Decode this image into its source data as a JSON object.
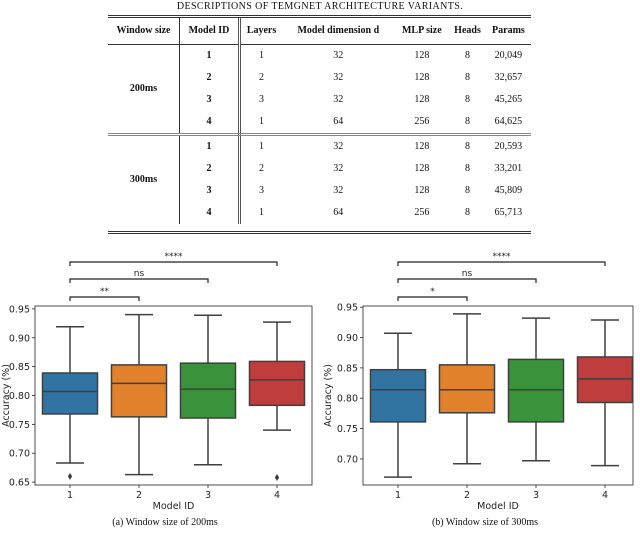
{
  "table": {
    "caption": "Descriptions of TEMGNet architecture variants.",
    "headers": [
      "Window size",
      "Model ID",
      "Layers",
      "Model dimension d",
      "MLP size",
      "Heads",
      "Params"
    ],
    "groups": [
      {
        "window": "200ms",
        "rows": [
          [
            "1",
            "1",
            "32",
            "128",
            "8",
            "20,049"
          ],
          [
            "2",
            "2",
            "32",
            "128",
            "8",
            "32,657"
          ],
          [
            "3",
            "3",
            "32",
            "128",
            "8",
            "45,265"
          ],
          [
            "4",
            "1",
            "64",
            "256",
            "8",
            "64,625"
          ]
        ]
      },
      {
        "window": "300ms",
        "rows": [
          [
            "1",
            "1",
            "32",
            "128",
            "8",
            "20,593"
          ],
          [
            "2",
            "2",
            "32",
            "128",
            "8",
            "33,201"
          ],
          [
            "3",
            "3",
            "32",
            "128",
            "8",
            "45,809"
          ],
          [
            "4",
            "1",
            "64",
            "256",
            "8",
            "65,713"
          ]
        ]
      }
    ]
  },
  "chart_data": [
    {
      "type": "box",
      "caption": "(a) Window size of 200ms",
      "xlabel": "Model ID",
      "ylabel": "Accuracy (%)",
      "categories": [
        "1",
        "2",
        "3",
        "4"
      ],
      "colors": [
        "#3274a1",
        "#e1812c",
        "#3a923a",
        "#c03d3e"
      ],
      "ylim": [
        0.645,
        0.955
      ],
      "yticks": [
        "0.65",
        "0.70",
        "0.75",
        "0.80",
        "0.85",
        "0.90",
        "0.95"
      ],
      "boxes": [
        {
          "whislo": 0.683,
          "q1": 0.768,
          "med": 0.807,
          "q3": 0.839,
          "whishi": 0.919,
          "fliers": [
            0.66
          ]
        },
        {
          "whislo": 0.663,
          "q1": 0.763,
          "med": 0.821,
          "q3": 0.853,
          "whishi": 0.94,
          "fliers": []
        },
        {
          "whislo": 0.68,
          "q1": 0.761,
          "med": 0.811,
          "q3": 0.856,
          "whishi": 0.939,
          "fliers": []
        },
        {
          "whislo": 0.74,
          "q1": 0.783,
          "med": 0.827,
          "q3": 0.859,
          "whishi": 0.927,
          "fliers": [
            0.658
          ]
        }
      ],
      "annotations": [
        {
          "pair": [
            "1",
            "2"
          ],
          "label": "**"
        },
        {
          "pair": [
            "1",
            "3"
          ],
          "label": "ns"
        },
        {
          "pair": [
            "1",
            "4"
          ],
          "label": "****"
        }
      ]
    },
    {
      "type": "box",
      "caption": "(b) Window size of 300ms",
      "xlabel": "Model ID",
      "ylabel": "Accuracy (%)",
      "categories": [
        "1",
        "2",
        "3",
        "4"
      ],
      "colors": [
        "#3274a1",
        "#e1812c",
        "#3a923a",
        "#c03d3e"
      ],
      "ylim": [
        0.657,
        0.952
      ],
      "yticks": [
        "0.70",
        "0.75",
        "0.80",
        "0.85",
        "0.90",
        "0.95"
      ],
      "boxes": [
        {
          "whislo": 0.67,
          "q1": 0.761,
          "med": 0.814,
          "q3": 0.847,
          "whishi": 0.907,
          "fliers": []
        },
        {
          "whislo": 0.692,
          "q1": 0.776,
          "med": 0.814,
          "q3": 0.855,
          "whishi": 0.939,
          "fliers": []
        },
        {
          "whislo": 0.697,
          "q1": 0.761,
          "med": 0.814,
          "q3": 0.864,
          "whishi": 0.932,
          "fliers": []
        },
        {
          "whislo": 0.689,
          "q1": 0.793,
          "med": 0.832,
          "q3": 0.868,
          "whishi": 0.929,
          "fliers": []
        }
      ],
      "annotations": [
        {
          "pair": [
            "1",
            "2"
          ],
          "label": "*"
        },
        {
          "pair": [
            "1",
            "3"
          ],
          "label": "ns"
        },
        {
          "pair": [
            "1",
            "4"
          ],
          "label": "****"
        }
      ]
    }
  ]
}
